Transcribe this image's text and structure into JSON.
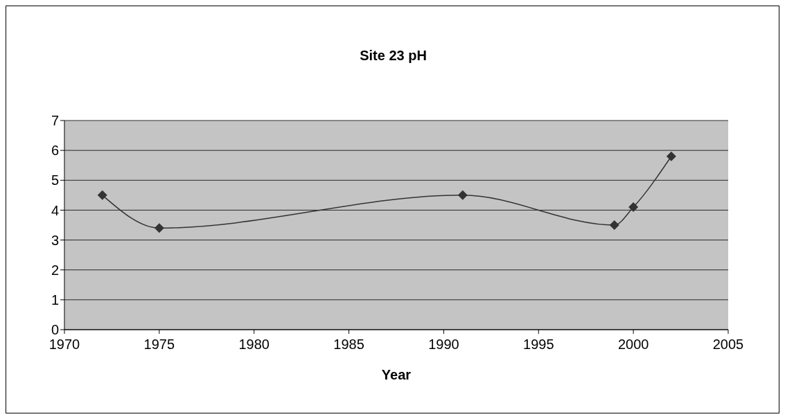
{
  "chart_data": {
    "type": "line",
    "title": "Site 23 pH",
    "xlabel": "Year",
    "x": [
      1972,
      1975,
      1991,
      1999,
      2000,
      2002
    ],
    "series": [
      {
        "color": "#333333",
        "values": [
          4.5,
          3.4,
          4.5,
          3.5,
          4.1,
          5.8
        ]
      }
    ],
    "xlim": [
      1970,
      2005
    ],
    "xticks": [
      1970,
      1975,
      1980,
      1985,
      1990,
      1995,
      2000,
      2005
    ],
    "ylim": [
      0,
      7
    ],
    "yticks": [
      0,
      1,
      2,
      3,
      4,
      5,
      6,
      7
    ],
    "grid": "y",
    "marker": "diamond",
    "line_style": "solid"
  }
}
